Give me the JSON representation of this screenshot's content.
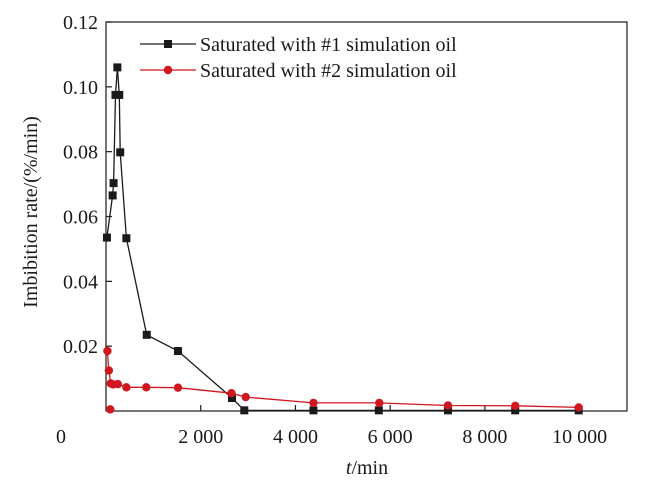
{
  "chart_data": {
    "type": "line",
    "xlabel_italic": "t",
    "xlabel_rest": "/min",
    "ylabel": "Imbibition rate/(%/min)",
    "xlim": [
      0,
      11000
    ],
    "ylim": [
      0,
      0.12
    ],
    "x_ticks": [
      {
        "value": 2000,
        "label": "2 000"
      },
      {
        "value": 4000,
        "label": "4 000"
      },
      {
        "value": 6000,
        "label": "6 000"
      },
      {
        "value": 8000,
        "label": "8 000"
      },
      {
        "value": 10000,
        "label": "10 000"
      }
    ],
    "x_origin_label": "0",
    "y_ticks": [
      {
        "value": 0.02,
        "label": "0.02"
      },
      {
        "value": 0.04,
        "label": "0.04"
      },
      {
        "value": 0.06,
        "label": "0.06"
      },
      {
        "value": 0.08,
        "label": "0.08"
      },
      {
        "value": 0.1,
        "label": "0.10"
      },
      {
        "value": 0.12,
        "label": "0.12"
      }
    ],
    "grid": false,
    "legend_position": "top-center",
    "series": [
      {
        "name": "Saturated with #1 simulation oil",
        "color": "#1a1a1a",
        "marker": "square",
        "points": [
          [
            20,
            0.0535
          ],
          [
            140,
            0.0665
          ],
          [
            160,
            0.0703
          ],
          [
            200,
            0.0975
          ],
          [
            240,
            0.106
          ],
          [
            280,
            0.0975
          ],
          [
            300,
            0.0798
          ],
          [
            430,
            0.0533
          ],
          [
            860,
            0.0235
          ],
          [
            1520,
            0.0185
          ],
          [
            2660,
            0.004
          ],
          [
            2920,
            0.0002
          ],
          [
            4380,
            0.0002
          ],
          [
            5760,
            0.0002
          ],
          [
            7220,
            0.0002
          ],
          [
            8640,
            0.0002
          ],
          [
            9980,
            0.0002
          ]
        ]
      },
      {
        "name": "Saturated with #2 simulation oil",
        "color": "#d0161e",
        "marker": "circle",
        "points": [
          [
            30,
            0.0185
          ],
          [
            60,
            0.0125
          ],
          [
            100,
            0.0085
          ],
          [
            150,
            0.0082
          ],
          [
            250,
            0.0083
          ],
          [
            430,
            0.0073
          ],
          [
            850,
            0.0073
          ],
          [
            1520,
            0.0072
          ],
          [
            2650,
            0.0055
          ],
          [
            2950,
            0.0043
          ],
          [
            4380,
            0.0025
          ],
          [
            5770,
            0.0025
          ],
          [
            7220,
            0.0017
          ],
          [
            8640,
            0.0016
          ],
          [
            9980,
            0.0011
          ],
          [
            90,
            0.0005
          ]
        ]
      }
    ]
  }
}
